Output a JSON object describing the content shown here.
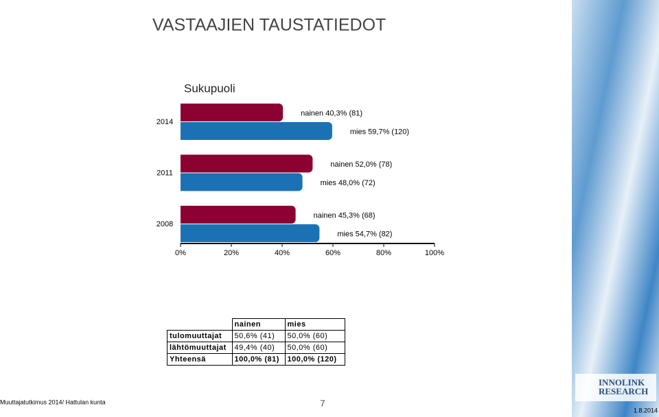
{
  "slide": {
    "title": "VASTAAJIEN TAUSTATIEDOT",
    "footer": "Muuttajatutkimus 2014/ Hattulan kunta",
    "page": "7",
    "date": "1.8.2014",
    "logo": [
      "INNOLINK",
      "RESEARCH"
    ]
  },
  "chart_data": {
    "type": "bar",
    "orientation": "horizontal",
    "title": "Sukupuoli",
    "categories": [
      "2014",
      "2011",
      "2008"
    ],
    "series": [
      {
        "color": "#8c0032",
        "values": [
          40.3,
          52.0,
          45.3
        ],
        "value_labels": [
          "nainen 40,3% (81)",
          "nainen 52,0% (78)",
          "nainen 45,3% (68)"
        ]
      },
      {
        "color": "#1a72b5",
        "values": [
          59.7,
          48.0,
          54.7
        ],
        "value_labels": [
          "mies 59,7% (120)",
          "mies 48,0% (72)",
          "mies 54,7% (82)"
        ]
      }
    ],
    "xlim": [
      0,
      100
    ],
    "xticks": [
      {
        "value": 0,
        "label": "0%"
      },
      {
        "value": 20,
        "label": "20%"
      },
      {
        "value": 40,
        "label": "40%"
      },
      {
        "value": 60,
        "label": "60%"
      },
      {
        "value": 80,
        "label": "80%"
      },
      {
        "value": 100,
        "label": "100%"
      }
    ]
  },
  "table": {
    "columns": [
      "nainen",
      "mies"
    ],
    "rows": [
      {
        "label": "tulomuuttajat",
        "cells": [
          "50,6% (41)",
          "50,0% (60)"
        ]
      },
      {
        "label": "lähtömuuttajat",
        "cells": [
          "49,4% (40)",
          "50,0% (60)"
        ]
      },
      {
        "label": "Yhteensä",
        "cells": [
          "100,0% (81)",
          "100,0% (120)"
        ]
      }
    ]
  }
}
